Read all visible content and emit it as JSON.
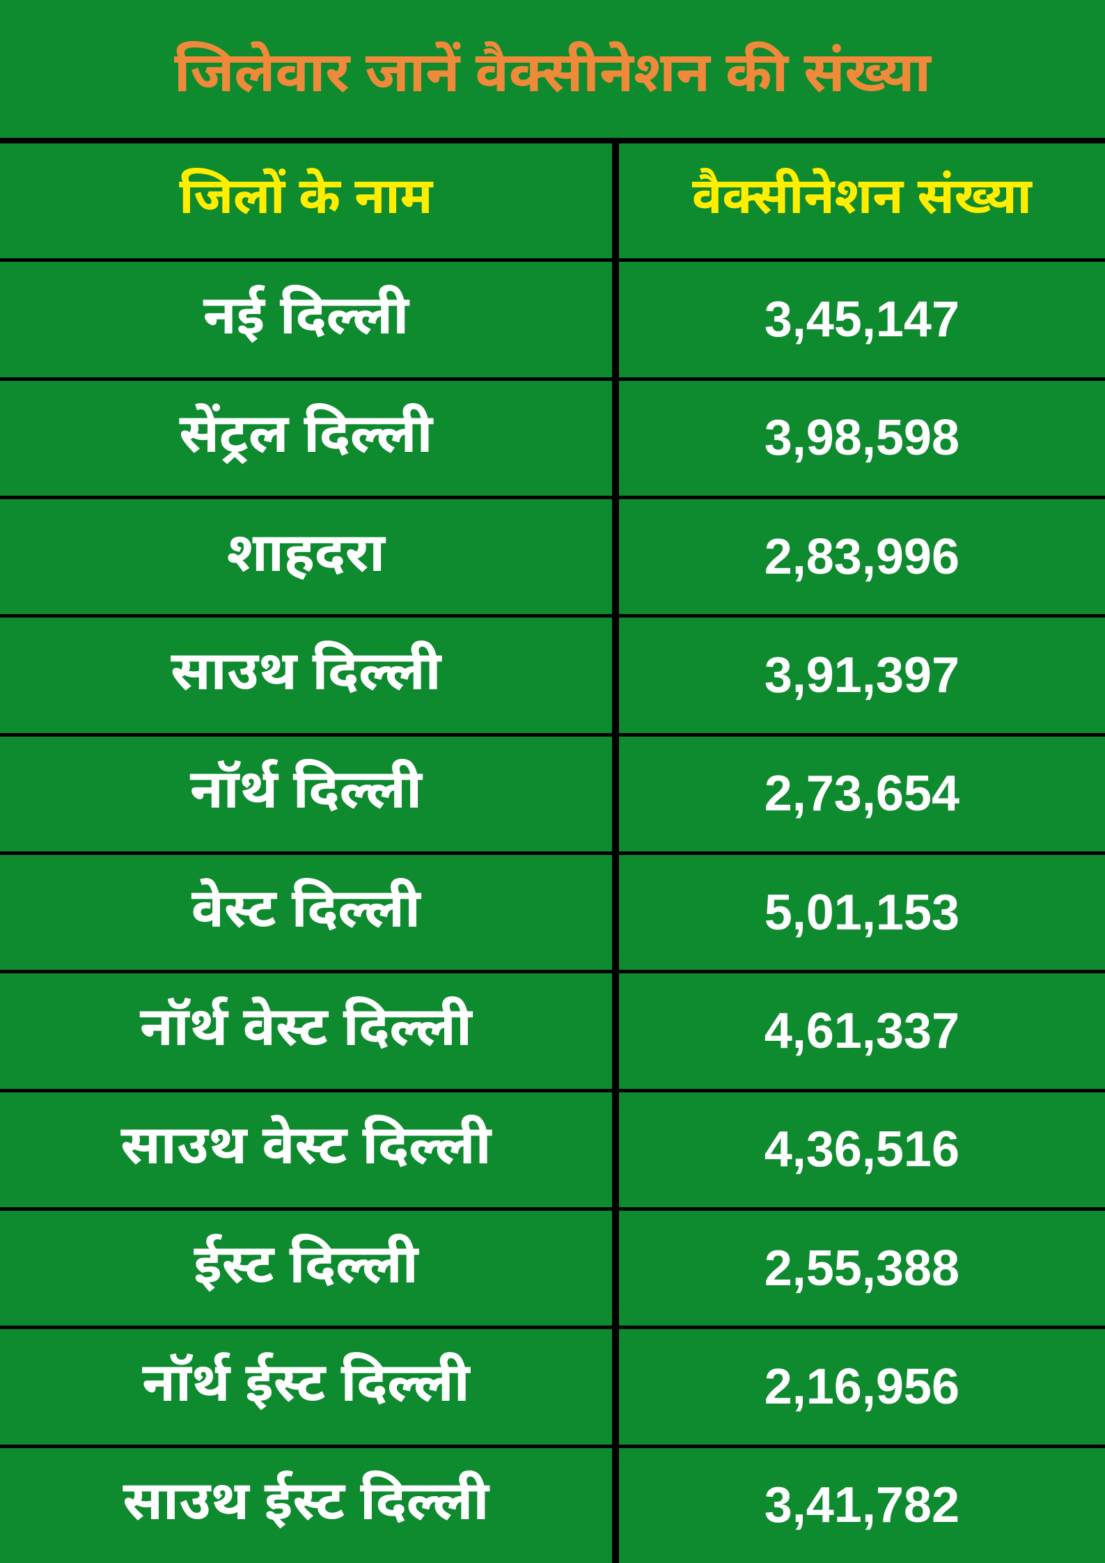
{
  "title": "जिलेवार जानें वैक्सीनेशन की संख्या",
  "table": {
    "type": "table",
    "background_color": "#0e8a2f",
    "border_color": "#000000",
    "title_color": "#ee8a3a",
    "title_fontsize": 80,
    "header_color": "#ffee00",
    "header_fontsize": 72,
    "data_color": "#ffffff",
    "district_fontsize": 78,
    "count_fontsize": 72,
    "columns": [
      {
        "key": "district",
        "label": "जिलों के नाम",
        "width_pct": 56,
        "align": "center"
      },
      {
        "key": "count",
        "label": "वैक्सीनेशन संख्या",
        "width_pct": 44,
        "align": "center"
      }
    ],
    "rows": [
      {
        "district": "नई दिल्ली",
        "count": "3,45,147"
      },
      {
        "district": "सेंट्रल दिल्ली",
        "count": "3,98,598"
      },
      {
        "district": "शाहदरा",
        "count": "2,83,996"
      },
      {
        "district": "साउथ दिल्ली",
        "count": "3,91,397"
      },
      {
        "district": "नॉर्थ दिल्ली",
        "count": "2,73,654"
      },
      {
        "district": "वेस्ट दिल्ली",
        "count": "5,01,153"
      },
      {
        "district": "नॉर्थ वेस्ट दिल्ली",
        "count": "4,61,337"
      },
      {
        "district": "साउथ वेस्ट दिल्ली",
        "count": "4,36,516"
      },
      {
        "district": "ईस्ट दिल्ली",
        "count": "2,55,388"
      },
      {
        "district": "नॉर्थ ईस्ट दिल्ली",
        "count": "2,16,956"
      },
      {
        "district": "साउथ ईस्ट दिल्ली",
        "count": "3,41,782"
      }
    ]
  }
}
